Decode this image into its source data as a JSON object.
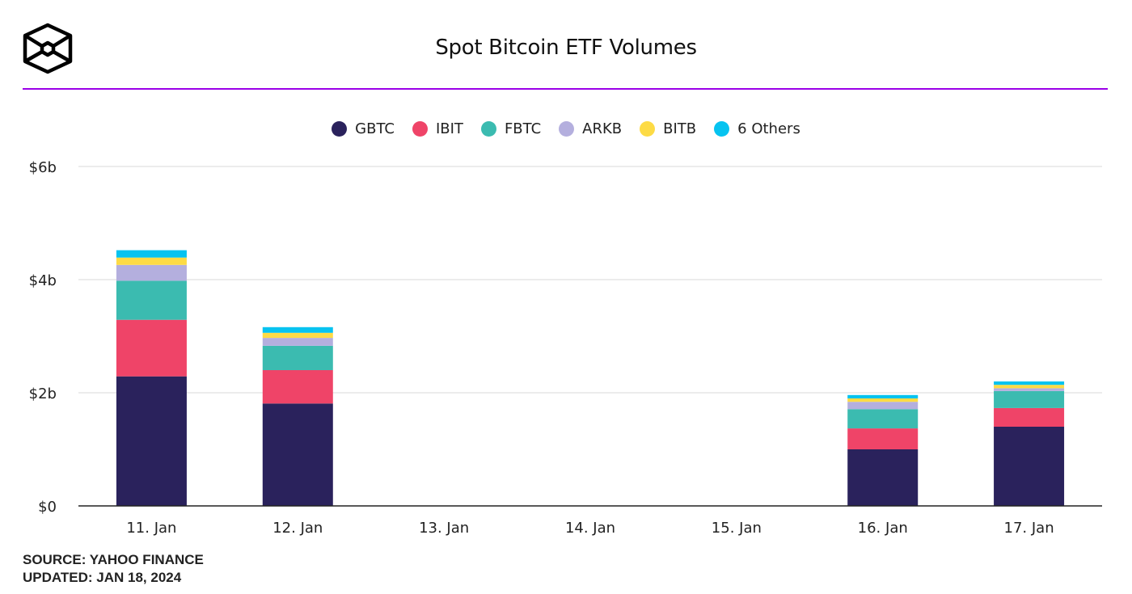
{
  "header": {
    "title": "Spot Bitcoin ETF Volumes",
    "logo": "cube-logo",
    "rule_color": "#9b00e8"
  },
  "chart_data": {
    "type": "bar",
    "stacked": true,
    "title": "Spot Bitcoin ETF Volumes",
    "xlabel": "",
    "ylabel": "",
    "categories": [
      "11. Jan",
      "12. Jan",
      "13. Jan",
      "14. Jan",
      "15. Jan",
      "16. Jan",
      "17. Jan"
    ],
    "yticks": [
      0,
      2,
      4,
      6
    ],
    "ytick_labels": [
      "$0",
      "$2b",
      "$4b",
      "$6b"
    ],
    "ylim": [
      0,
      6
    ],
    "unit": "$b",
    "grid": true,
    "legend_position": "top",
    "series": [
      {
        "name": "GBTC",
        "color": "#2a225c",
        "values": [
          2.29,
          1.81,
          0,
          0,
          0,
          1.0,
          1.4
        ]
      },
      {
        "name": "IBIT",
        "color": "#ef4468",
        "values": [
          1.0,
          0.59,
          0,
          0,
          0,
          0.37,
          0.33
        ]
      },
      {
        "name": "FBTC",
        "color": "#3bbbb0",
        "values": [
          0.69,
          0.43,
          0,
          0,
          0,
          0.34,
          0.3
        ]
      },
      {
        "name": "ARKB",
        "color": "#b4afde",
        "values": [
          0.28,
          0.14,
          0,
          0,
          0,
          0.13,
          0.05
        ]
      },
      {
        "name": "BITB",
        "color": "#fddb45",
        "values": [
          0.13,
          0.09,
          0,
          0,
          0,
          0.06,
          0.06
        ]
      },
      {
        "name": "6 Others",
        "color": "#06c3f0",
        "values": [
          0.13,
          0.1,
          0,
          0,
          0,
          0.06,
          0.06
        ]
      }
    ]
  },
  "footer": {
    "source": "SOURCE: YAHOO FINANCE",
    "updated": "UPDATED: JAN 18, 2024"
  }
}
